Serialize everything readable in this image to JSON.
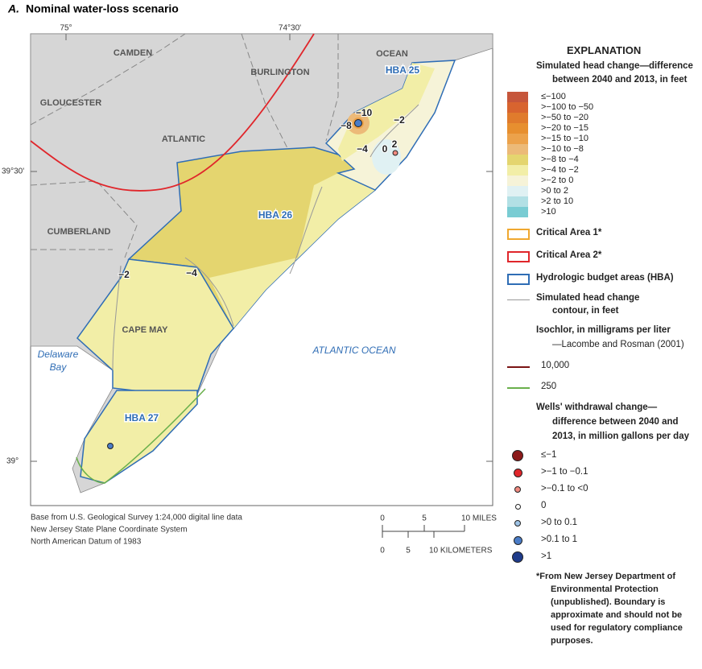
{
  "panel": "A.",
  "title": "Nominal water-loss scenario",
  "map": {
    "lon_labels": [
      "75°",
      "74°30'"
    ],
    "lat_labels": [
      "39°30'",
      "39°"
    ],
    "county_labels": [
      "CAMDEN",
      "BURLINGTON",
      "OCEAN",
      "GLOUCESTER",
      "ATLANTIC",
      "CUMBERLAND",
      "CAPE MAY"
    ],
    "hba_labels": [
      "HBA 25",
      "HBA 26",
      "HBA 27"
    ],
    "water_labels": [
      "ATLANTIC OCEAN",
      "Delaware",
      "Bay"
    ],
    "contour_labels": [
      "−10",
      "−8",
      "−4",
      "−2",
      "0",
      "2",
      "−4",
      "−2"
    ]
  },
  "source": [
    "Base from U.S. Geological Survey 1:24,000 digital line data",
    "New Jersey State Plane Coordinate System",
    "North American Datum of 1983"
  ],
  "scale": {
    "miles": [
      "0",
      "5",
      "10 MILES"
    ],
    "km": [
      "0",
      "5",
      "10 KILOMETERS"
    ]
  },
  "legend": {
    "title": "EXPLANATION",
    "head_title": [
      "Simulated head change—difference",
      "between 2040 and 2013, in feet"
    ],
    "head_items": [
      {
        "label": "≤−100",
        "color": "#c6563b"
      },
      {
        "label": ">−100 to −50",
        "color": "#d8642f"
      },
      {
        "label": ">−50 to −20",
        "color": "#e07b2c"
      },
      {
        "label": ">−20 to −15",
        "color": "#e78f2f"
      },
      {
        "label": ">−15 to −10",
        "color": "#eca24b"
      },
      {
        "label": ">−10 to −8",
        "color": "#ecba78"
      },
      {
        "label": ">−8 to −4",
        "color": "#e4d56f"
      },
      {
        "label": ">−4 to −2",
        "color": "#f2eea7"
      },
      {
        "label": ">−2 to 0",
        "color": "#f6f3d8"
      },
      {
        "label": ">0 to 2",
        "color": "#e0f1f3"
      },
      {
        "label": ">2 to 10",
        "color": "#b2e0e5"
      },
      {
        "label": ">10",
        "color": "#79ccd3"
      }
    ],
    "area_items": [
      {
        "label": "Critical Area 1*",
        "color": "#f0a830"
      },
      {
        "label": "Critical Area 2*",
        "color": "#e0262b"
      },
      {
        "label": "Hydrologic budget areas (HBA)",
        "color": "#2f6db5"
      }
    ],
    "contour_label": [
      "Simulated head change",
      "contour, in feet"
    ],
    "isochlor_title": [
      "Isochlor, in milligrams per liter",
      "—Lacombe and Rosman (2001)"
    ],
    "isochlor_items": [
      {
        "label": "10,000",
        "color": "#7a1414"
      },
      {
        "label": "250",
        "color": "#6ab04c"
      }
    ],
    "wells_title": [
      "Wells' withdrawal change—",
      "difference between 2040 and",
      "2013, in million gallons per day"
    ],
    "wells_items": [
      {
        "label": "≤−1",
        "color": "#8b1a1a"
      },
      {
        "label": ">−1 to −0.1",
        "color": "#e0262b"
      },
      {
        "label": ">−0.1 to <0",
        "color": "#f08a80"
      },
      {
        "label": "0",
        "color": "#ffffff"
      },
      {
        "label": ">0 to 0.1",
        "color": "#9ec3e6"
      },
      {
        "label": ">0.1 to 1",
        "color": "#4a7cc7"
      },
      {
        "label": ">1",
        "color": "#1f3c8a"
      }
    ],
    "footnote": [
      "*From New Jersey Department of",
      "Environmental Protection",
      "(unpublished). Boundary is",
      "approximate and should not be",
      "used for regulatory compliance",
      "purposes."
    ]
  }
}
